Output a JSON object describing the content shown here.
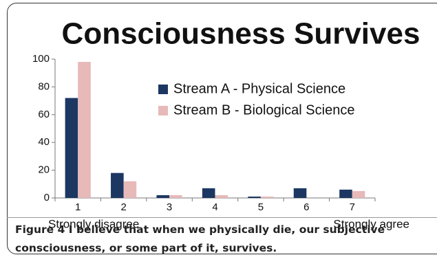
{
  "chart_data": {
    "type": "bar",
    "title": "Consciousness Survives",
    "categories": [
      "1",
      "2",
      "3",
      "4",
      "5",
      "6",
      "7"
    ],
    "series": [
      {
        "name": "Stream A - Physical Science",
        "color": "#1c3762",
        "values": [
          72,
          18,
          2,
          7,
          1,
          7,
          6
        ]
      },
      {
        "name": "Stream B - Biological Science",
        "color": "#e7b9b9",
        "values": [
          98,
          12,
          2,
          2,
          1,
          0,
          5
        ]
      }
    ],
    "annotations": [
      "Strongly disagree",
      "Strongly agree"
    ],
    "ylim": [
      0,
      100
    ],
    "yticks": [
      0,
      20,
      40,
      60,
      80,
      100
    ],
    "grid": false,
    "legend": "upper right"
  },
  "caption_label": "Figure 4",
  "caption": "I believe that when we physically die, our subjective consciousness, or some part of it, survives."
}
